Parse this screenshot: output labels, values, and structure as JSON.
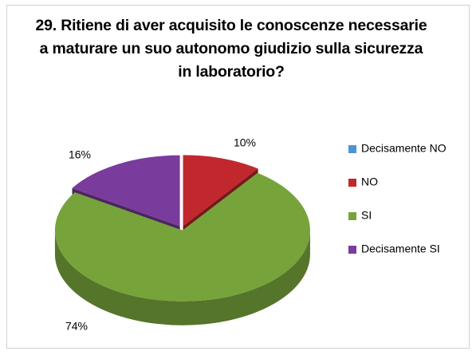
{
  "chart_data": {
    "type": "pie",
    "title": "29. Ritiene di aver acquisito le conoscenze necessarie a maturare un suo autonomo giudizio sulla sicurezza in laboratorio?",
    "categories": [
      "Decisamente NO",
      "NO",
      "SI",
      "Decisamente SI"
    ],
    "values": [
      0,
      10,
      74,
      16
    ],
    "value_labels": [
      null,
      "10%",
      "74%",
      "16%"
    ],
    "colors": [
      "#4f93d2",
      "#c0282d",
      "#77a33b",
      "#7a3c9c"
    ],
    "legend": "right"
  }
}
